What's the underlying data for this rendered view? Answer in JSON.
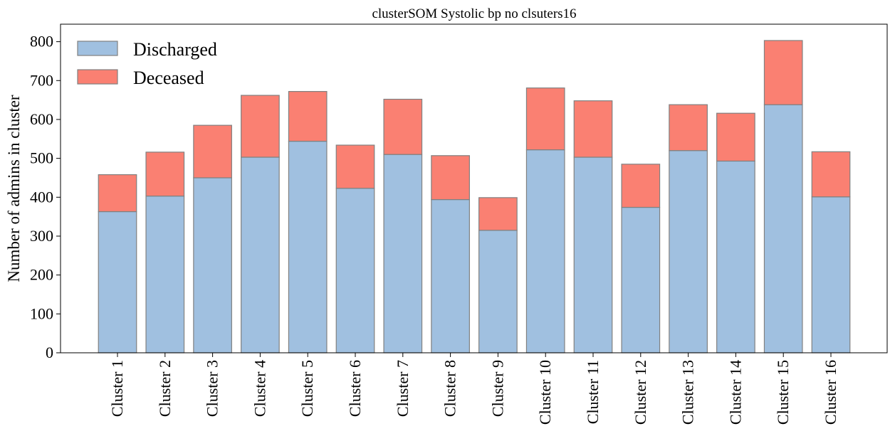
{
  "chart_data": {
    "type": "bar",
    "stacked": true,
    "title": "clusterSOM Systolic bp no clsuters16",
    "xlabel": "",
    "ylabel": "Number of admins in cluster",
    "ylim": [
      0,
      845
    ],
    "yticks": [
      0,
      100,
      200,
      300,
      400,
      500,
      600,
      700,
      800
    ],
    "grid": false,
    "legend_position": "top-left",
    "categories": [
      "Cluster 1",
      "Cluster 2",
      "Cluster 3",
      "Cluster 4",
      "Cluster 5",
      "Cluster 6",
      "Cluster 7",
      "Cluster 8",
      "Cluster 9",
      "Cluster 10",
      "Cluster 11",
      "Cluster 12",
      "Cluster 13",
      "Cluster 14",
      "Cluster 15",
      "Cluster 16"
    ],
    "series": [
      {
        "name": "Discharged",
        "color": "#a0c0e0",
        "values": [
          363,
          403,
          450,
          503,
          544,
          423,
          510,
          394,
          315,
          522,
          503,
          374,
          520,
          493,
          638,
          401
        ]
      },
      {
        "name": "Deceased",
        "color": "#fa8072",
        "values": [
          95,
          113,
          135,
          159,
          128,
          111,
          142,
          113,
          84,
          159,
          145,
          111,
          118,
          123,
          165,
          116
        ]
      }
    ]
  }
}
